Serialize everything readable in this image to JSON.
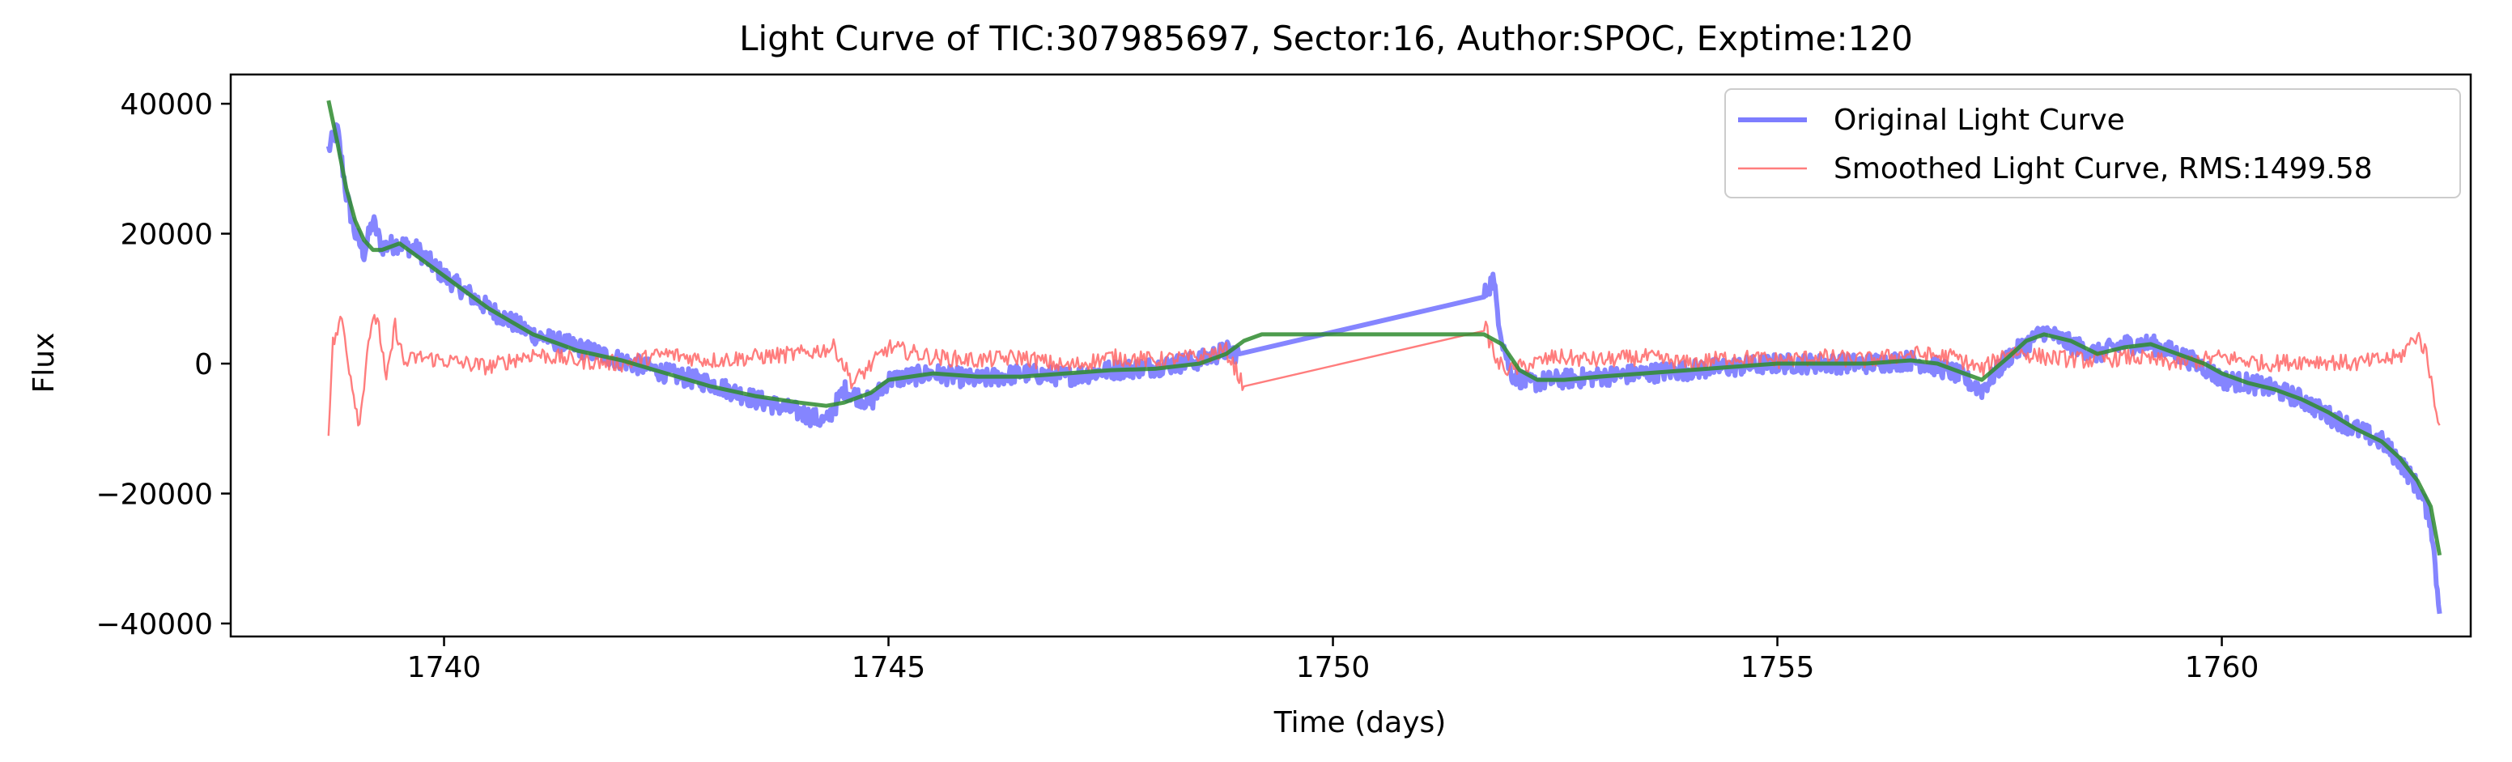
{
  "chart_data": {
    "type": "line",
    "title": "Light Curve of TIC:307985697, Sector:16, Author:SPOC, Exptime:120",
    "xlabel": "Time (days)",
    "ylabel": "Flux",
    "xlim": [
      1737.6,
      1762.8
    ],
    "ylim": [
      -42000,
      44500
    ],
    "xticks": [
      1740,
      1745,
      1750,
      1755,
      1760
    ],
    "xtick_labels": [
      "1740",
      "1745",
      "1750",
      "1755",
      "1760"
    ],
    "yticks": [
      -40000,
      -20000,
      0,
      20000,
      40000
    ],
    "ytick_labels": [
      "−40000",
      "−20000",
      "0",
      "20000",
      "40000"
    ],
    "grid": false,
    "legend_position": "top-right",
    "series": [
      {
        "name": "Original Light Curve",
        "color": "#6666ff",
        "style": "noisy",
        "x": [
          1738.7,
          1738.8,
          1738.9,
          1739.0,
          1739.1,
          1739.2,
          1739.3,
          1739.5,
          1739.7,
          1740.0,
          1740.5,
          1741.0,
          1741.5,
          1742.0,
          1742.5,
          1743.0,
          1743.5,
          1744.0,
          1744.3,
          1744.5,
          1744.8,
          1745.0,
          1745.5,
          1746.0,
          1746.5,
          1747.0,
          1747.5,
          1748.0,
          1748.5,
          1748.8,
          1748.95,
          1751.7,
          1751.8,
          1751.9,
          1752.0,
          1752.2,
          1752.5,
          1753.0,
          1753.5,
          1754.0,
          1754.5,
          1755.0,
          1755.5,
          1756.0,
          1756.5,
          1756.8,
          1757.0,
          1757.3,
          1757.6,
          1757.8,
          1758.0,
          1758.3,
          1758.6,
          1758.9,
          1759.2,
          1759.5,
          1759.8,
          1760.0,
          1760.3,
          1760.6,
          1760.9,
          1761.2,
          1761.5,
          1761.8,
          1762.0,
          1762.2,
          1762.35,
          1762.45
        ],
        "y": [
          33000,
          36000,
          26000,
          20000,
          17000,
          22000,
          18000,
          18500,
          17500,
          13500,
          8500,
          4500,
          2500,
          500,
          -1500,
          -3000,
          -5500,
          -7500,
          -9000,
          -4000,
          -6000,
          -2500,
          -1500,
          -2500,
          -1500,
          -2000,
          -1000,
          -500,
          500,
          2000,
          1500,
          10500,
          13000,
          4000,
          -1500,
          -3000,
          -2500,
          -2000,
          -1500,
          -1000,
          -500,
          0,
          0,
          0,
          500,
          -500,
          -1500,
          -4000,
          1000,
          3000,
          5000,
          3000,
          1500,
          3000,
          3000,
          1500,
          -500,
          -2500,
          -3000,
          -4000,
          -5500,
          -8000,
          -10000,
          -12000,
          -15000,
          -19000,
          -24000,
          -38500
        ]
      },
      {
        "name": "Smoothed Light Curve, RMS:1499.58",
        "color": "#ff6666",
        "style": "noisy",
        "x": [
          1738.7,
          1738.75,
          1738.85,
          1738.95,
          1739.05,
          1739.15,
          1739.25,
          1739.35,
          1739.45,
          1739.55,
          1739.7,
          1740.0,
          1740.5,
          1741.0,
          1741.5,
          1742.0,
          1742.5,
          1743.0,
          1743.5,
          1744.0,
          1744.4,
          1744.6,
          1745.0,
          1745.5,
          1746.0,
          1746.5,
          1747.0,
          1747.5,
          1748.0,
          1748.5,
          1748.8,
          1749.0,
          1751.7,
          1751.85,
          1752.0,
          1752.5,
          1753.0,
          1753.5,
          1754.0,
          1754.5,
          1755.0,
          1755.5,
          1756.0,
          1756.5,
          1757.0,
          1757.3,
          1757.6,
          1758.0,
          1758.5,
          1759.0,
          1759.5,
          1760.0,
          1760.5,
          1761.0,
          1761.5,
          1762.0,
          1762.2,
          1762.3,
          1762.45
        ],
        "y": [
          -10000,
          3000,
          7000,
          -2000,
          -9500,
          4000,
          7500,
          -3000,
          6000,
          0,
          1000,
          500,
          -500,
          1500,
          500,
          0,
          1500,
          500,
          1000,
          1500,
          2500,
          -3000,
          2500,
          1000,
          500,
          1000,
          -500,
          1000,
          500,
          1000,
          2000,
          -3500,
          6000,
          0,
          -1000,
          1000,
          500,
          1000,
          0,
          1000,
          500,
          1000,
          500,
          1500,
          1000,
          -1000,
          2000,
          1000,
          500,
          1000,
          0,
          1000,
          0,
          500,
          0,
          1000,
          4500,
          1500,
          -9500
        ]
      },
      {
        "name": "",
        "color": "#2e8b2e",
        "style": "smooth",
        "x": [
          1738.7,
          1738.8,
          1738.9,
          1739.0,
          1739.1,
          1739.2,
          1739.3,
          1739.5,
          1739.7,
          1740.0,
          1740.5,
          1741.0,
          1741.5,
          1742.0,
          1742.5,
          1743.0,
          1743.5,
          1744.0,
          1744.3,
          1744.5,
          1744.8,
          1745.0,
          1745.5,
          1746.0,
          1746.5,
          1747.0,
          1747.5,
          1748.0,
          1748.5,
          1748.8,
          1749.0,
          1749.2,
          1751.7,
          1751.9,
          1752.1,
          1752.3,
          1752.6,
          1753.0,
          1753.5,
          1754.0,
          1754.5,
          1755.0,
          1755.5,
          1756.0,
          1756.5,
          1756.8,
          1757.0,
          1757.3,
          1757.6,
          1757.8,
          1758.0,
          1758.3,
          1758.6,
          1758.9,
          1759.2,
          1759.5,
          1759.8,
          1760.0,
          1760.3,
          1760.6,
          1760.9,
          1761.2,
          1761.5,
          1761.8,
          1762.0,
          1762.2,
          1762.35,
          1762.45
        ],
        "y": [
          40500,
          34000,
          27000,
          22000,
          19000,
          17500,
          17500,
          18500,
          16500,
          13500,
          8500,
          4500,
          2000,
          500,
          -1500,
          -3500,
          -5000,
          -6000,
          -6500,
          -6000,
          -4500,
          -2500,
          -1500,
          -2000,
          -2000,
          -1500,
          -1000,
          -800,
          0,
          1500,
          3500,
          4500,
          4500,
          3000,
          -1000,
          -2500,
          -2500,
          -2000,
          -1500,
          -1000,
          -500,
          0,
          0,
          0,
          500,
          0,
          -1000,
          -2500,
          1000,
          3500,
          4500,
          3500,
          1500,
          2500,
          3000,
          1500,
          0,
          -1500,
          -3000,
          -4000,
          -5500,
          -7500,
          -10000,
          -12000,
          -14500,
          -18000,
          -22000,
          -29500
        ]
      }
    ]
  }
}
